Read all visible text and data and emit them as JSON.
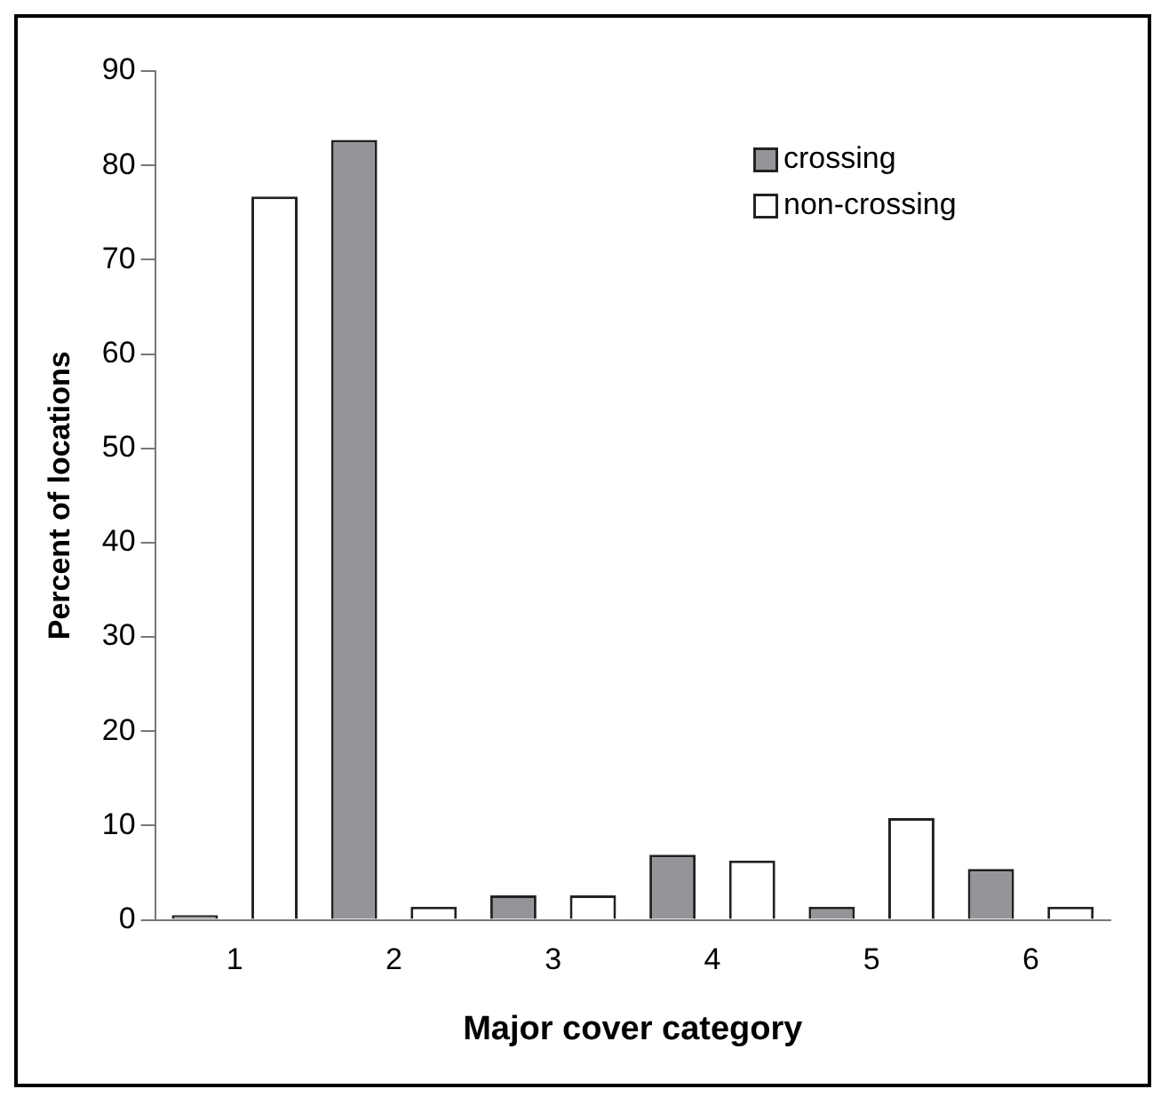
{
  "chart_data": {
    "type": "bar",
    "xlabel": "Major cover category",
    "ylabel": "Percent of locations",
    "categories": [
      "1",
      "2",
      "3",
      "4",
      "5",
      "6"
    ],
    "series": [
      {
        "name": "crossing",
        "color": "#939598",
        "values": [
          0.5,
          82.7,
          2.6,
          6.9,
          1.4,
          5.4
        ]
      },
      {
        "name": "non-crossing",
        "color": "#ffffff",
        "values": [
          76.7,
          1.4,
          2.6,
          6.3,
          10.8,
          1.4
        ]
      }
    ],
    "ylim": [
      0,
      90
    ],
    "yticks": [
      0,
      10,
      20,
      30,
      40,
      50,
      60,
      70,
      80,
      90
    ],
    "grid": false,
    "legend": "top right"
  }
}
